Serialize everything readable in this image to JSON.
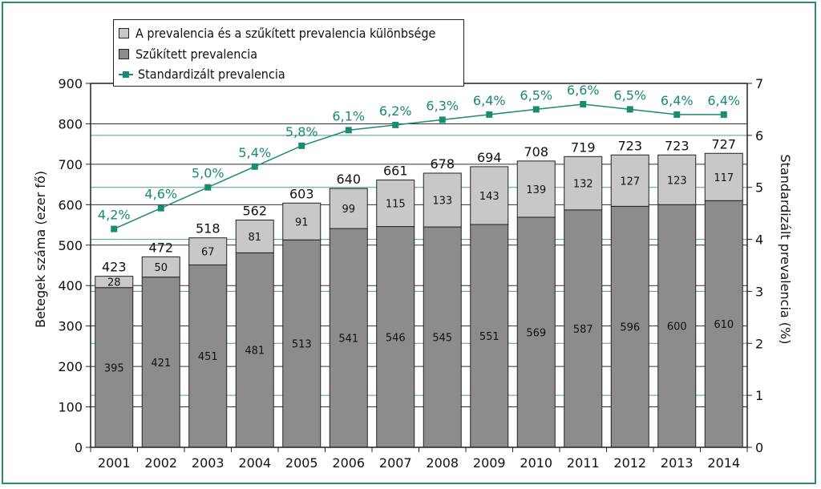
{
  "chart_data": {
    "type": "bar",
    "stacked": true,
    "categories": [
      "2001",
      "2002",
      "2003",
      "2004",
      "2005",
      "2006",
      "2007",
      "2008",
      "2009",
      "2010",
      "2011",
      "2012",
      "2013",
      "2014"
    ],
    "series": [
      {
        "name": "Szűkített prevalencia",
        "type": "bar",
        "color": "#8c8c8c",
        "values": [
          395,
          421,
          451,
          481,
          513,
          541,
          546,
          545,
          551,
          569,
          587,
          596,
          600,
          610
        ]
      },
      {
        "name": "A prevalencia és a szűkített prevalencia különbsége",
        "type": "bar",
        "color": "#c8c8c8",
        "values": [
          28,
          50,
          67,
          81,
          91,
          99,
          115,
          133,
          143,
          139,
          132,
          127,
          123,
          117
        ]
      },
      {
        "name": "Standardizált prevalencia",
        "type": "line",
        "axis": "right",
        "color": "#1a8a70",
        "values": [
          4.2,
          4.6,
          5.0,
          5.4,
          5.8,
          6.1,
          6.2,
          6.3,
          6.4,
          6.5,
          6.6,
          6.5,
          6.4,
          6.4
        ],
        "labels": [
          "4,2%",
          "4,6%",
          "5,0%",
          "5,4%",
          "5,8%",
          "6,1%",
          "6,2%",
          "6,3%",
          "6,4%",
          "6,5%",
          "6,6%",
          "6,5%",
          "6,4%",
          "6,4%"
        ]
      }
    ],
    "totals": [
      423,
      472,
      518,
      562,
      603,
      640,
      661,
      678,
      694,
      708,
      719,
      723,
      723,
      727
    ],
    "ylabel": "Betegek száma (ezer fő)",
    "y2label": "Standardizált prevalencia (%)",
    "ylim": [
      0,
      900
    ],
    "y2lim": [
      0,
      7
    ],
    "yticks": [
      0,
      100,
      200,
      300,
      400,
      500,
      600,
      700,
      800,
      900
    ],
    "y2ticks": [
      0,
      1,
      2,
      3,
      4,
      5,
      6,
      7
    ],
    "grid": true,
    "legend_position": "top-left"
  },
  "legend": {
    "diff_label": "A prevalencia és a szűkített prevalencia különbsége",
    "narrow_label": "Szűkített prevalencia",
    "std_label": "Standardizált prevalencia"
  },
  "colors": {
    "frame": "#2e8b6e",
    "line": "#1a8a70",
    "bar_dark": "#8c8c8c",
    "bar_light": "#c8c8c8"
  }
}
